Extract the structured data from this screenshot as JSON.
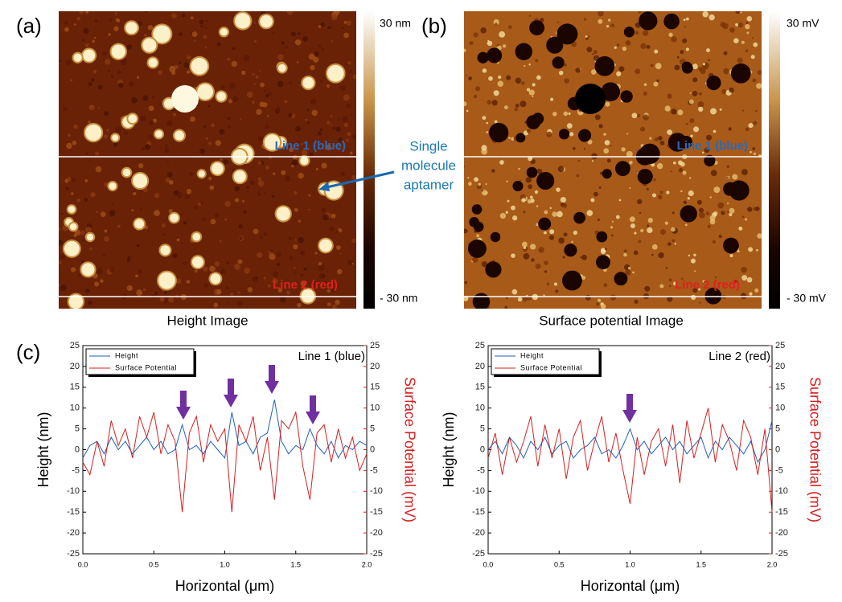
{
  "panels": {
    "a": {
      "label": "(a)",
      "scale_max": "30 nm",
      "scale_min": "- 30 nm",
      "line1": "Line 1 (blue)",
      "line2": "Line 2 (red)",
      "caption": "Height Image"
    },
    "b": {
      "label": "(b)",
      "scale_max": "30 mV",
      "scale_min": "- 30 mV",
      "line1": "Line 1 (blue)",
      "line2": "Line 2 (red)",
      "caption": "Surface potential Image"
    },
    "c": {
      "label": "(c)"
    }
  },
  "annotation": [
    "Single",
    "molecule",
    "aptamer"
  ],
  "chart_data": [
    {
      "type": "line",
      "annotation": "Line 1 (blue)",
      "x": [
        0,
        0.05,
        0.1,
        0.15,
        0.2,
        0.25,
        0.3,
        0.35,
        0.4,
        0.45,
        0.5,
        0.55,
        0.6,
        0.65,
        0.7,
        0.75,
        0.8,
        0.85,
        0.9,
        0.95,
        1.0,
        1.05,
        1.1,
        1.15,
        1.2,
        1.25,
        1.3,
        1.35,
        1.4,
        1.45,
        1.5,
        1.55,
        1.6,
        1.65,
        1.7,
        1.75,
        1.8,
        1.85,
        1.9,
        1.95,
        2.0
      ],
      "xlim": [
        0,
        2
      ],
      "xticks": [
        {
          "value": 0,
          "label": "0.0"
        },
        {
          "value": 0.5,
          "label": "0.5"
        },
        {
          "value": 1,
          "label": "1.0"
        },
        {
          "value": 1.5,
          "label": "1.5"
        },
        {
          "value": 2,
          "label": "2.0"
        }
      ],
      "ylim": [
        -25,
        25
      ],
      "yticks": [
        -25,
        -20,
        -15,
        -10,
        -5,
        0,
        5,
        10,
        15,
        20,
        25
      ],
      "y2lim": [
        -25,
        25
      ],
      "y2ticks": [
        -25,
        -20,
        -15,
        -10,
        -5,
        0,
        5,
        10,
        15,
        20,
        25
      ],
      "xlabel": "Horizontal (μm)",
      "ylabel": "Height (nm)",
      "y2label": "Surface Potential (mV)",
      "series": [
        {
          "name": "Height",
          "color": "#1f5fbf",
          "values": [
            -2,
            1,
            2,
            -1,
            3,
            0,
            2,
            -1,
            1,
            3,
            0,
            2,
            -1,
            0,
            6,
            0,
            1,
            -1,
            2,
            0,
            -2,
            9,
            1,
            2,
            -1,
            3,
            4,
            12,
            2,
            -1,
            1,
            0,
            5,
            1,
            -1,
            2,
            -2,
            1,
            0,
            2,
            1
          ]
        },
        {
          "name": "Surface Potential",
          "color": "#d42020",
          "axis": "y2",
          "values": [
            -3,
            -6,
            2,
            -4,
            7,
            1,
            5,
            -2,
            8,
            3,
            9,
            -1,
            6,
            2,
            -15,
            4,
            8,
            -3,
            6,
            2,
            5,
            -15,
            6,
            2,
            8,
            -5,
            3,
            -12,
            7,
            5,
            9,
            -4,
            -12,
            4,
            6,
            -3,
            5,
            -2,
            3,
            -5,
            -1
          ]
        }
      ]
    },
    {
      "type": "line",
      "annotation": "Line 2 (red)",
      "x": [
        0,
        0.05,
        0.1,
        0.15,
        0.2,
        0.25,
        0.3,
        0.35,
        0.4,
        0.45,
        0.5,
        0.55,
        0.6,
        0.65,
        0.7,
        0.75,
        0.8,
        0.85,
        0.9,
        0.95,
        1.0,
        1.05,
        1.1,
        1.15,
        1.2,
        1.25,
        1.3,
        1.35,
        1.4,
        1.45,
        1.5,
        1.55,
        1.6,
        1.65,
        1.7,
        1.75,
        1.8,
        1.85,
        1.9,
        1.95,
        2.0
      ],
      "xlim": [
        0,
        2
      ],
      "xticks": [
        {
          "value": 0,
          "label": "0.0"
        },
        {
          "value": 0.5,
          "label": "0.5"
        },
        {
          "value": 1,
          "label": "1.0"
        },
        {
          "value": 1.5,
          "label": "1.5"
        },
        {
          "value": 2,
          "label": "2.0"
        }
      ],
      "ylim": [
        -25,
        25
      ],
      "yticks": [
        -25,
        -20,
        -15,
        -10,
        -5,
        0,
        5,
        10,
        15,
        20,
        25
      ],
      "y2lim": [
        -25,
        25
      ],
      "y2ticks": [
        -25,
        -20,
        -15,
        -10,
        -5,
        0,
        5,
        10,
        15,
        20,
        25
      ],
      "xlabel": "Horizontal (μm)",
      "ylabel": "Height (nm)",
      "y2label": "Surface Potential (mV)",
      "series": [
        {
          "name": "Height",
          "color": "#1f5fbf",
          "values": [
            0,
            2,
            -1,
            3,
            1,
            -2,
            2,
            0,
            3,
            -1,
            1,
            2,
            -2,
            0,
            1,
            3,
            -1,
            0,
            -2,
            1,
            5,
            0,
            2,
            -1,
            1,
            3,
            0,
            2,
            -1,
            1,
            3,
            -2,
            2,
            0,
            3,
            1,
            -1,
            2,
            -3,
            0,
            7
          ]
        },
        {
          "name": "Surface Potential",
          "color": "#d42020",
          "axis": "y2",
          "values": [
            -2,
            4,
            -6,
            3,
            -3,
            2,
            8,
            -4,
            6,
            -2,
            5,
            -7,
            3,
            7,
            -5,
            2,
            8,
            -3,
            4,
            -5,
            -13,
            3,
            -6,
            2,
            5,
            -4,
            6,
            -8,
            7,
            -2,
            4,
            10,
            -3,
            6,
            2,
            -5,
            7,
            3,
            -6,
            5,
            -15
          ]
        }
      ]
    }
  ]
}
